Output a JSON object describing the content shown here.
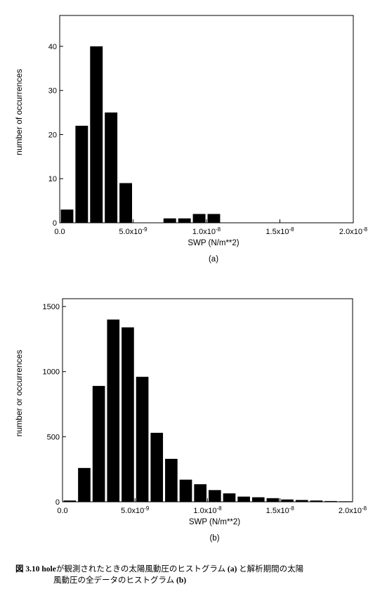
{
  "chart_data": [
    {
      "type": "bar",
      "panel_label": "(a)",
      "xlabel": "SWP (N/m**2)",
      "ylabel": "number of occurrences",
      "xlim": [
        0,
        2e-08
      ],
      "ylim": [
        0,
        47
      ],
      "x_ticks": [
        "0.0",
        "5.0x10-9",
        "1.0x10-8",
        "1.5x10-8",
        "2.0x10-8"
      ],
      "x_tick_values": [
        0,
        5e-09,
        1e-08,
        1.5e-08,
        2e-08
      ],
      "y_ticks": [
        "0",
        "10",
        "20",
        "30",
        "40"
      ],
      "y_tick_values": [
        0,
        10,
        20,
        30,
        40
      ],
      "bin_width": 1e-09,
      "bins_start": [
        0,
        1e-09,
        2e-09,
        3e-09,
        4e-09,
        5e-09,
        6e-09,
        7e-09,
        8e-09,
        9e-09,
        1e-08
      ],
      "values": [
        3,
        22,
        40,
        25,
        9,
        0,
        0,
        1,
        1,
        2,
        2
      ]
    },
    {
      "type": "bar",
      "panel_label": "(b)",
      "xlabel": "SWP (N/m**2)",
      "ylabel": "number or occurrences",
      "xlim": [
        0,
        2e-08
      ],
      "ylim": [
        0,
        1560
      ],
      "x_ticks": [
        "0.0",
        "5.0x10-9",
        "1.0x10-8",
        "1.5x10-8",
        "2.0x10-8"
      ],
      "x_tick_values": [
        0,
        5e-09,
        1e-08,
        1.5e-08,
        2e-08
      ],
      "y_ticks": [
        "0",
        "500",
        "1000",
        "1500"
      ],
      "y_tick_values": [
        0,
        500,
        1000,
        1500
      ],
      "bin_width": 1e-09,
      "bins_start": [
        0,
        1e-09,
        2e-09,
        3e-09,
        4e-09,
        5e-09,
        6e-09,
        7e-09,
        8e-09,
        9e-09,
        1e-08,
        1.1e-08,
        1.2e-08,
        1.3e-08,
        1.4e-08,
        1.5e-08,
        1.6e-08,
        1.7e-08,
        1.8e-08,
        1.9e-08
      ],
      "values": [
        10,
        260,
        890,
        1400,
        1340,
        960,
        530,
        330,
        170,
        135,
        90,
        65,
        40,
        35,
        28,
        18,
        14,
        10,
        6,
        4
      ]
    }
  ],
  "caption": {
    "line1_number": "図 3.10",
    "line1_bold_word": "hole",
    "line1_text": "が観測されたときの太陽風動圧のヒストグラム",
    "line1_ref_a": "(a)",
    "line1_tail": "と解析期間の太陽",
    "line2_text": "風動圧の全データのヒストグラム",
    "line2_ref_b": "(b)"
  }
}
